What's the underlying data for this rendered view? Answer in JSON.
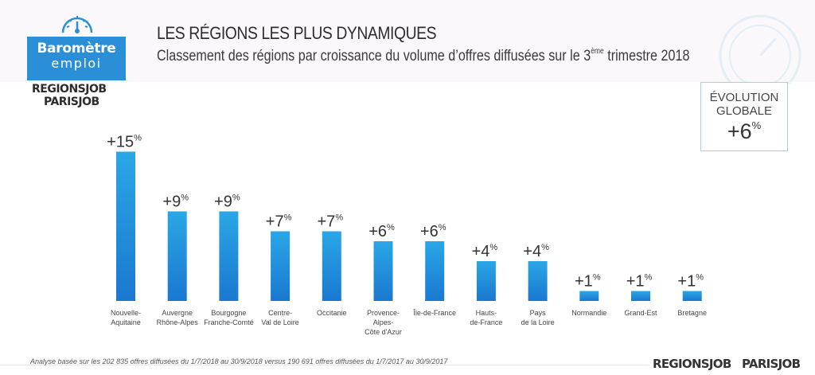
{
  "header": {
    "logo_line1": "Baromètre",
    "logo_line2": "emploi",
    "brand_top_1": "REGIONSJOB",
    "brand_top_2": "PARISJOB",
    "title": "LES RÉGIONS LES PLUS DYNAMIQUES",
    "subtitle_before": "Classement des régions par croissance du volume d’offres diffusées sur le 3",
    "subtitle_sup": "ème",
    "subtitle_after": " trimestre 2018"
  },
  "global_evolution": {
    "label_line1": "ÉVOLUTION",
    "label_line2": "GLOBALE",
    "value": "+6",
    "unit": "%"
  },
  "chart_data": {
    "type": "bar",
    "title": "LES RÉGIONS LES PLUS DYNAMIQUES",
    "subtitle": "Classement des régions par croissance du volume d’offres diffusées sur le 3ème trimestre 2018",
    "xlabel": "",
    "ylabel": "",
    "ylim": [
      0,
      15
    ],
    "grid": false,
    "categories": [
      [
        "Nouvelle-",
        "Aquitaine"
      ],
      [
        "Auvergne",
        "Rhône-Alpes"
      ],
      [
        "Bourgogne",
        "Franche-Comté"
      ],
      [
        "Centre-",
        "Val de Loire"
      ],
      [
        "Occitanie"
      ],
      [
        "Provence-",
        "Alpes-",
        "Côte d'Azur"
      ],
      [
        "Île-de-France"
      ],
      [
        "Hauts-",
        "de-France"
      ],
      [
        "Pays",
        "de la Loire"
      ],
      [
        "Normandie"
      ],
      [
        "Grand-Est"
      ],
      [
        "Bretagne"
      ]
    ],
    "values": [
      15,
      9,
      9,
      7,
      7,
      6,
      6,
      4,
      4,
      1,
      1,
      1
    ],
    "value_prefix": "+",
    "value_unit": "%",
    "bar_color_top": "#2aa7e6",
    "bar_color_bottom": "#1a78d0"
  },
  "footer": {
    "note": "Analyse basée sur les 202 835 offres diffusées du 1/7/2018 au 30/9/2018 versus 190 691 offres diffusées du 1/7/2017 au 30/9/2017",
    "brand_1": "REGIONSJOB",
    "brand_2": "PARISJOB"
  }
}
